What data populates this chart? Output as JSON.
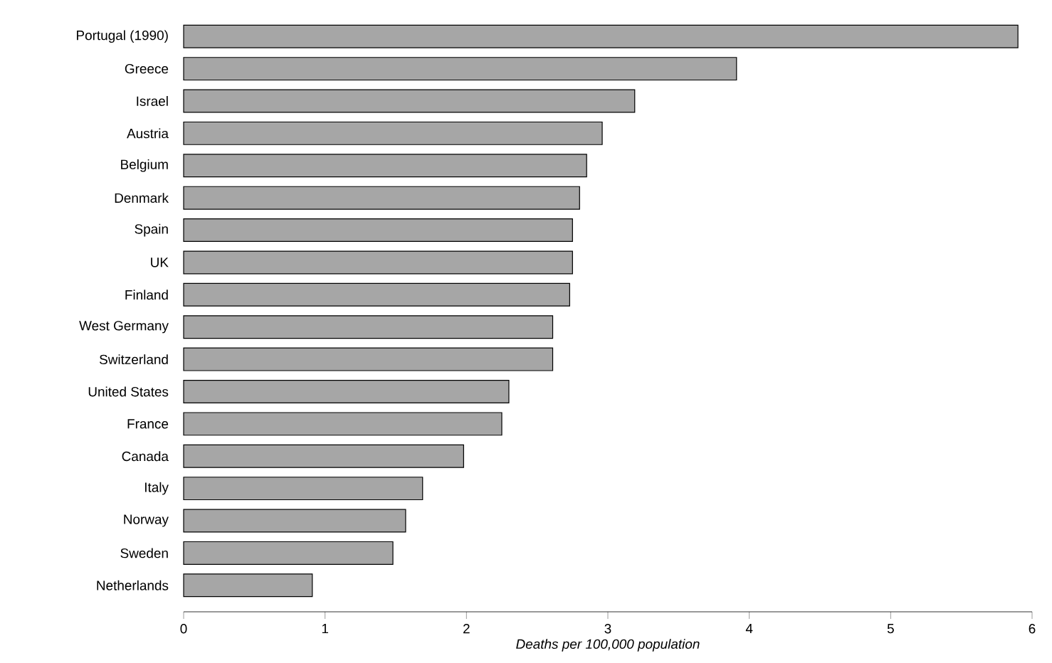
{
  "chart_data": {
    "type": "bar",
    "orientation": "horizontal",
    "xlabel": "Deaths per 100,000 population",
    "categories": [
      "Portugal (1990)",
      "Greece",
      "Israel",
      "Austria",
      "Belgium",
      "Denmark",
      "Spain",
      "UK",
      "Finland",
      "West Germany",
      "Switzerland",
      "United States",
      "France",
      "Canada",
      "Italy",
      "Norway",
      "Sweden",
      "Netherlands"
    ],
    "values": [
      5.9,
      3.91,
      3.19,
      2.96,
      2.85,
      2.8,
      2.75,
      2.75,
      2.73,
      2.61,
      2.61,
      2.3,
      2.25,
      1.98,
      1.69,
      1.57,
      1.48,
      0.91
    ],
    "color": "#a6a6a6",
    "xlim": [
      0,
      6
    ],
    "xticks": [
      0,
      1,
      2,
      3,
      4,
      5,
      6
    ]
  }
}
